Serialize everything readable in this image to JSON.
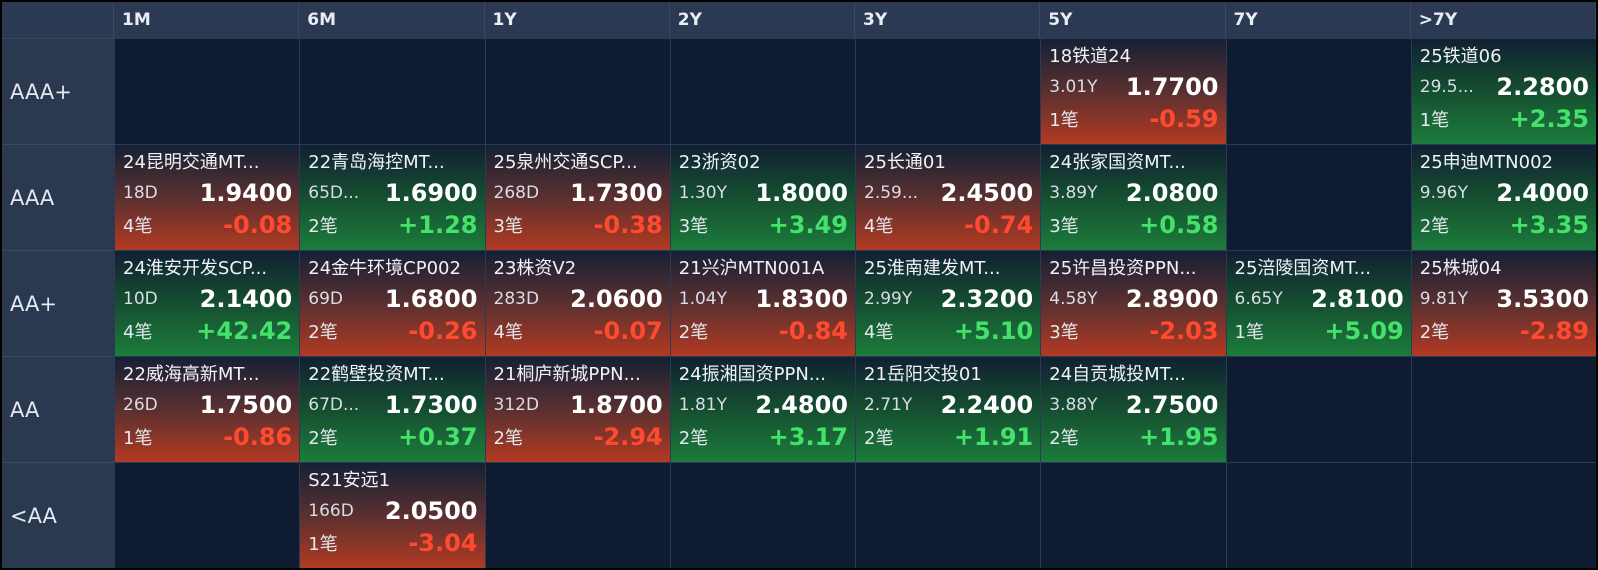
{
  "columns": [
    "1M",
    "6M",
    "1Y",
    "2Y",
    "3Y",
    "5Y",
    "7Y",
    ">7Y"
  ],
  "rows": [
    {
      "label": "AAA+",
      "cells": [
        null,
        null,
        null,
        null,
        null,
        {
          "name": "18铁道24",
          "tenor": "3.01Y",
          "yield": "1.7700",
          "count": "1笔",
          "change": "-0.59",
          "direction": "down"
        },
        null,
        {
          "name": "25铁道06",
          "tenor": "29.5...",
          "yield": "2.2800",
          "count": "1笔",
          "change": "+2.35",
          "direction": "up"
        }
      ]
    },
    {
      "label": "AAA",
      "cells": [
        {
          "name": "24昆明交通MT...",
          "tenor": "18D",
          "yield": "1.9400",
          "count": "4笔",
          "change": "-0.08",
          "direction": "down"
        },
        {
          "name": "22青岛海控MT...",
          "tenor": "65D...",
          "yield": "1.6900",
          "count": "2笔",
          "change": "+1.28",
          "direction": "up"
        },
        {
          "name": "25泉州交通SCP...",
          "tenor": "268D",
          "yield": "1.7300",
          "count": "3笔",
          "change": "-0.38",
          "direction": "down"
        },
        {
          "name": "23浙资02",
          "tenor": "1.30Y",
          "yield": "1.8000",
          "count": "3笔",
          "change": "+3.49",
          "direction": "up"
        },
        {
          "name": "25长通01",
          "tenor": "2.59...",
          "yield": "2.4500",
          "count": "4笔",
          "change": "-0.74",
          "direction": "down"
        },
        {
          "name": "24张家国资MT...",
          "tenor": "3.89Y",
          "yield": "2.0800",
          "count": "3笔",
          "change": "+0.58",
          "direction": "up"
        },
        null,
        {
          "name": "25申迪MTN002",
          "tenor": "9.96Y",
          "yield": "2.4000",
          "count": "2笔",
          "change": "+3.35",
          "direction": "up"
        }
      ]
    },
    {
      "label": "AA+",
      "cells": [
        {
          "name": "24淮安开发SCP...",
          "tenor": "10D",
          "yield": "2.1400",
          "count": "4笔",
          "change": "+42.42",
          "direction": "up"
        },
        {
          "name": "24金牛环境CP002",
          "tenor": "69D",
          "yield": "1.6800",
          "count": "2笔",
          "change": "-0.26",
          "direction": "down"
        },
        {
          "name": "23株资V2",
          "tenor": "283D",
          "yield": "2.0600",
          "count": "4笔",
          "change": "-0.07",
          "direction": "down"
        },
        {
          "name": "21兴沪MTN001A",
          "tenor": "1.04Y",
          "yield": "1.8300",
          "count": "2笔",
          "change": "-0.84",
          "direction": "down"
        },
        {
          "name": "25淮南建发MT...",
          "tenor": "2.99Y",
          "yield": "2.3200",
          "count": "4笔",
          "change": "+5.10",
          "direction": "up"
        },
        {
          "name": "25许昌投资PPN...",
          "tenor": "4.58Y",
          "yield": "2.8900",
          "count": "3笔",
          "change": "-2.03",
          "direction": "down"
        },
        {
          "name": "25涪陵国资MT...",
          "tenor": "6.65Y",
          "yield": "2.8100",
          "count": "1笔",
          "change": "+5.09",
          "direction": "up"
        },
        {
          "name": "25株城04",
          "tenor": "9.81Y",
          "yield": "3.5300",
          "count": "2笔",
          "change": "-2.89",
          "direction": "down"
        }
      ]
    },
    {
      "label": "AA",
      "cells": [
        {
          "name": "22威海高新MT...",
          "tenor": "26D",
          "yield": "1.7500",
          "count": "1笔",
          "change": "-0.86",
          "direction": "down"
        },
        {
          "name": "22鹤壁投资MT...",
          "tenor": "67D...",
          "yield": "1.7300",
          "count": "2笔",
          "change": "+0.37",
          "direction": "up"
        },
        {
          "name": "21桐庐新城PPN...",
          "tenor": "312D",
          "yield": "1.8700",
          "count": "2笔",
          "change": "-2.94",
          "direction": "down"
        },
        {
          "name": "24振湘国资PPN...",
          "tenor": "1.81Y",
          "yield": "2.4800",
          "count": "2笔",
          "change": "+3.17",
          "direction": "up"
        },
        {
          "name": "21岳阳交投01",
          "tenor": "2.71Y",
          "yield": "2.2400",
          "count": "2笔",
          "change": "+1.91",
          "direction": "up"
        },
        {
          "name": "24自贡城投MT...",
          "tenor": "3.88Y",
          "yield": "2.7500",
          "count": "2笔",
          "change": "+1.95",
          "direction": "up"
        },
        null,
        null
      ]
    },
    {
      "label": "<AA",
      "cells": [
        null,
        {
          "name": "S21安远1",
          "tenor": "166D",
          "yield": "2.0500",
          "count": "1笔",
          "change": "-3.04",
          "direction": "down"
        },
        null,
        null,
        null,
        null,
        null,
        null
      ]
    }
  ]
}
